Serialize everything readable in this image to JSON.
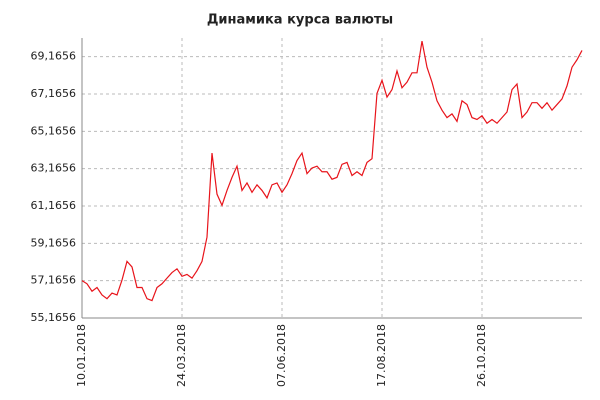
{
  "chart_data": {
    "type": "line",
    "title": "Динамика курса валюты",
    "categories": [
      "10.01.2018",
      null,
      null,
      null,
      null,
      null,
      null,
      null,
      null,
      null,
      null,
      null,
      null,
      null,
      null,
      null,
      null,
      null,
      null,
      null,
      "24.03.2018",
      null,
      null,
      null,
      null,
      null,
      null,
      null,
      null,
      null,
      null,
      null,
      null,
      null,
      null,
      null,
      null,
      null,
      null,
      null,
      "07.06.2018",
      null,
      null,
      null,
      null,
      null,
      null,
      null,
      null,
      null,
      null,
      null,
      null,
      null,
      null,
      null,
      null,
      null,
      null,
      null,
      "17.08.2018",
      null,
      null,
      null,
      null,
      null,
      null,
      null,
      null,
      null,
      null,
      null,
      null,
      null,
      null,
      null,
      null,
      null,
      null,
      null,
      "26.10.2018",
      null,
      null,
      null,
      null,
      null,
      null,
      null,
      null,
      null,
      null,
      null,
      null,
      null,
      null,
      null,
      null,
      null,
      null,
      null,
      null
    ],
    "series": [
      {
        "color": "#e8141b",
        "values": [
          57.17,
          57.0,
          56.6,
          56.8,
          56.4,
          56.2,
          56.5,
          56.4,
          57.2,
          58.2,
          57.9,
          56.8,
          56.8,
          56.2,
          56.1,
          56.8,
          57.0,
          57.3,
          57.6,
          57.8,
          57.4,
          57.5,
          57.3,
          57.7,
          58.2,
          59.5,
          64.0,
          61.8,
          61.2,
          62.0,
          62.7,
          63.3,
          62.0,
          62.4,
          61.9,
          62.3,
          62.0,
          61.6,
          62.3,
          62.4,
          61.9,
          62.3,
          62.9,
          63.6,
          64.0,
          62.9,
          63.2,
          63.3,
          63.0,
          63.0,
          62.6,
          62.7,
          63.4,
          63.5,
          62.8,
          63.0,
          62.8,
          63.5,
          63.7,
          67.2,
          67.9,
          67.0,
          67.4,
          68.4,
          67.5,
          67.8,
          68.3,
          68.3,
          70.0,
          68.6,
          67.8,
          66.8,
          66.3,
          65.9,
          66.1,
          65.7,
          66.8,
          66.6,
          65.9,
          65.8,
          66.0,
          65.6,
          65.8,
          65.6,
          65.9,
          66.2,
          67.4,
          67.7,
          65.9,
          66.2,
          66.7,
          66.7,
          66.4,
          66.7,
          66.3,
          66.6,
          66.9,
          67.6,
          68.6,
          69.0,
          69.5
        ]
      }
    ],
    "ylim": [
      55.1656,
      70.1656
    ],
    "yticks": [
      {
        "value": 55.1656,
        "label": "55,1656"
      },
      {
        "value": 57.1656,
        "label": "57,1656"
      },
      {
        "value": 59.1656,
        "label": "59,1656"
      },
      {
        "value": 61.1656,
        "label": "61,1656"
      },
      {
        "value": 63.1656,
        "label": "63,1656"
      },
      {
        "value": 65.1656,
        "label": "65,1656"
      },
      {
        "value": 67.1656,
        "label": "67,1656"
      },
      {
        "value": 69.1656,
        "label": "69,1656"
      }
    ],
    "grid": true
  }
}
